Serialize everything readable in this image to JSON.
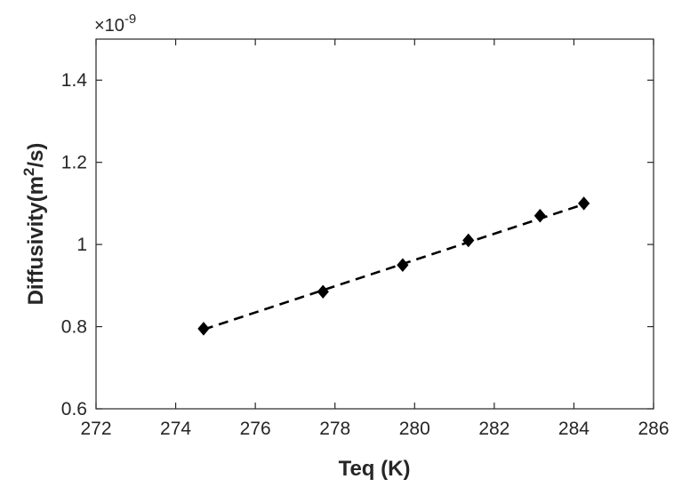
{
  "chart_data": {
    "type": "scatter",
    "xlabel": "Teq (K)",
    "ylabel": {
      "main": "Diffusivity(m",
      "sup": "2",
      "tail": "/s)"
    },
    "y_exponent": {
      "prefix": "×10",
      "power": "-9"
    },
    "xlim": [
      272,
      286
    ],
    "ylim": [
      0.6,
      1.5
    ],
    "x_ticks": [
      272,
      274,
      276,
      278,
      280,
      282,
      284,
      286
    ],
    "x_tick_labels": [
      "272",
      "274",
      "276",
      "278",
      "280",
      "282",
      "284",
      "286"
    ],
    "y_ticks": [
      0.6,
      0.8,
      1.0,
      1.2,
      1.4
    ],
    "y_tick_labels": [
      "0.6",
      "0.8",
      "1",
      "1.2",
      "1.4"
    ],
    "grid": false,
    "series": [
      {
        "marker": "diamond",
        "color": "#000000",
        "x": [
          274.7,
          277.7,
          279.7,
          281.35,
          283.15,
          284.25
        ],
        "y": [
          0.795,
          0.885,
          0.95,
          1.01,
          1.07,
          1.1
        ]
      }
    ],
    "fit_line": {
      "style": "dashed",
      "color": "#000000",
      "x": [
        274.7,
        284.25
      ],
      "y": [
        0.793,
        1.098
      ]
    }
  }
}
